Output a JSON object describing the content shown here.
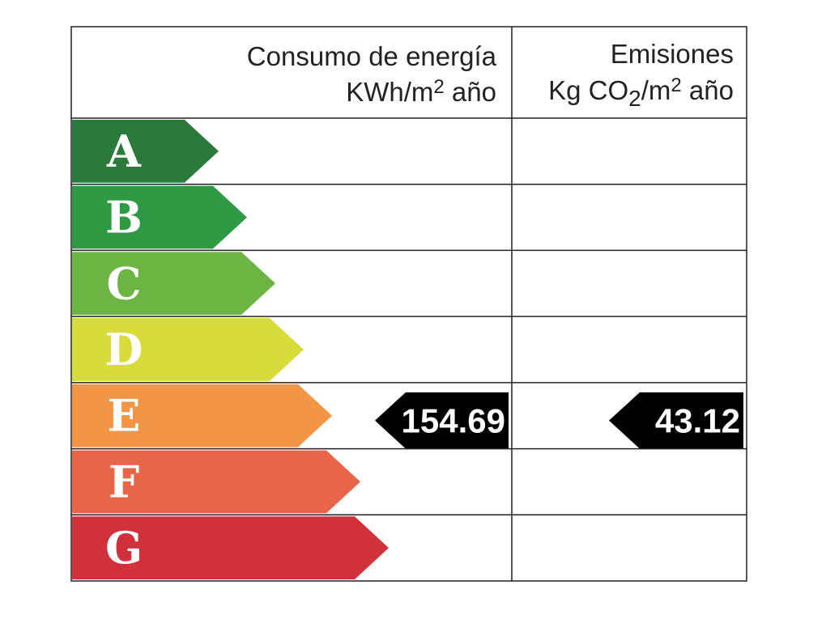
{
  "header": {
    "energy": {
      "title": "Consumo de energía",
      "unit": [
        "KWh/m",
        "2",
        " año"
      ]
    },
    "emissions": {
      "title": "Emisiones",
      "unit": [
        "Kg CO",
        "2",
        "/m",
        "2",
        " año"
      ]
    }
  },
  "rows": [
    {
      "letter": "A",
      "color": "#2a7a3b"
    },
    {
      "letter": "B",
      "color": "#2f9a44"
    },
    {
      "letter": "C",
      "color": "#6db543"
    },
    {
      "letter": "D",
      "color": "#d8dc3a"
    },
    {
      "letter": "E",
      "color": "#f29544",
      "energy": 154.69,
      "emissions": 43.12
    },
    {
      "letter": "F",
      "color": "#e8654a"
    },
    {
      "letter": "G",
      "color": "#d0313a"
    }
  ]
}
